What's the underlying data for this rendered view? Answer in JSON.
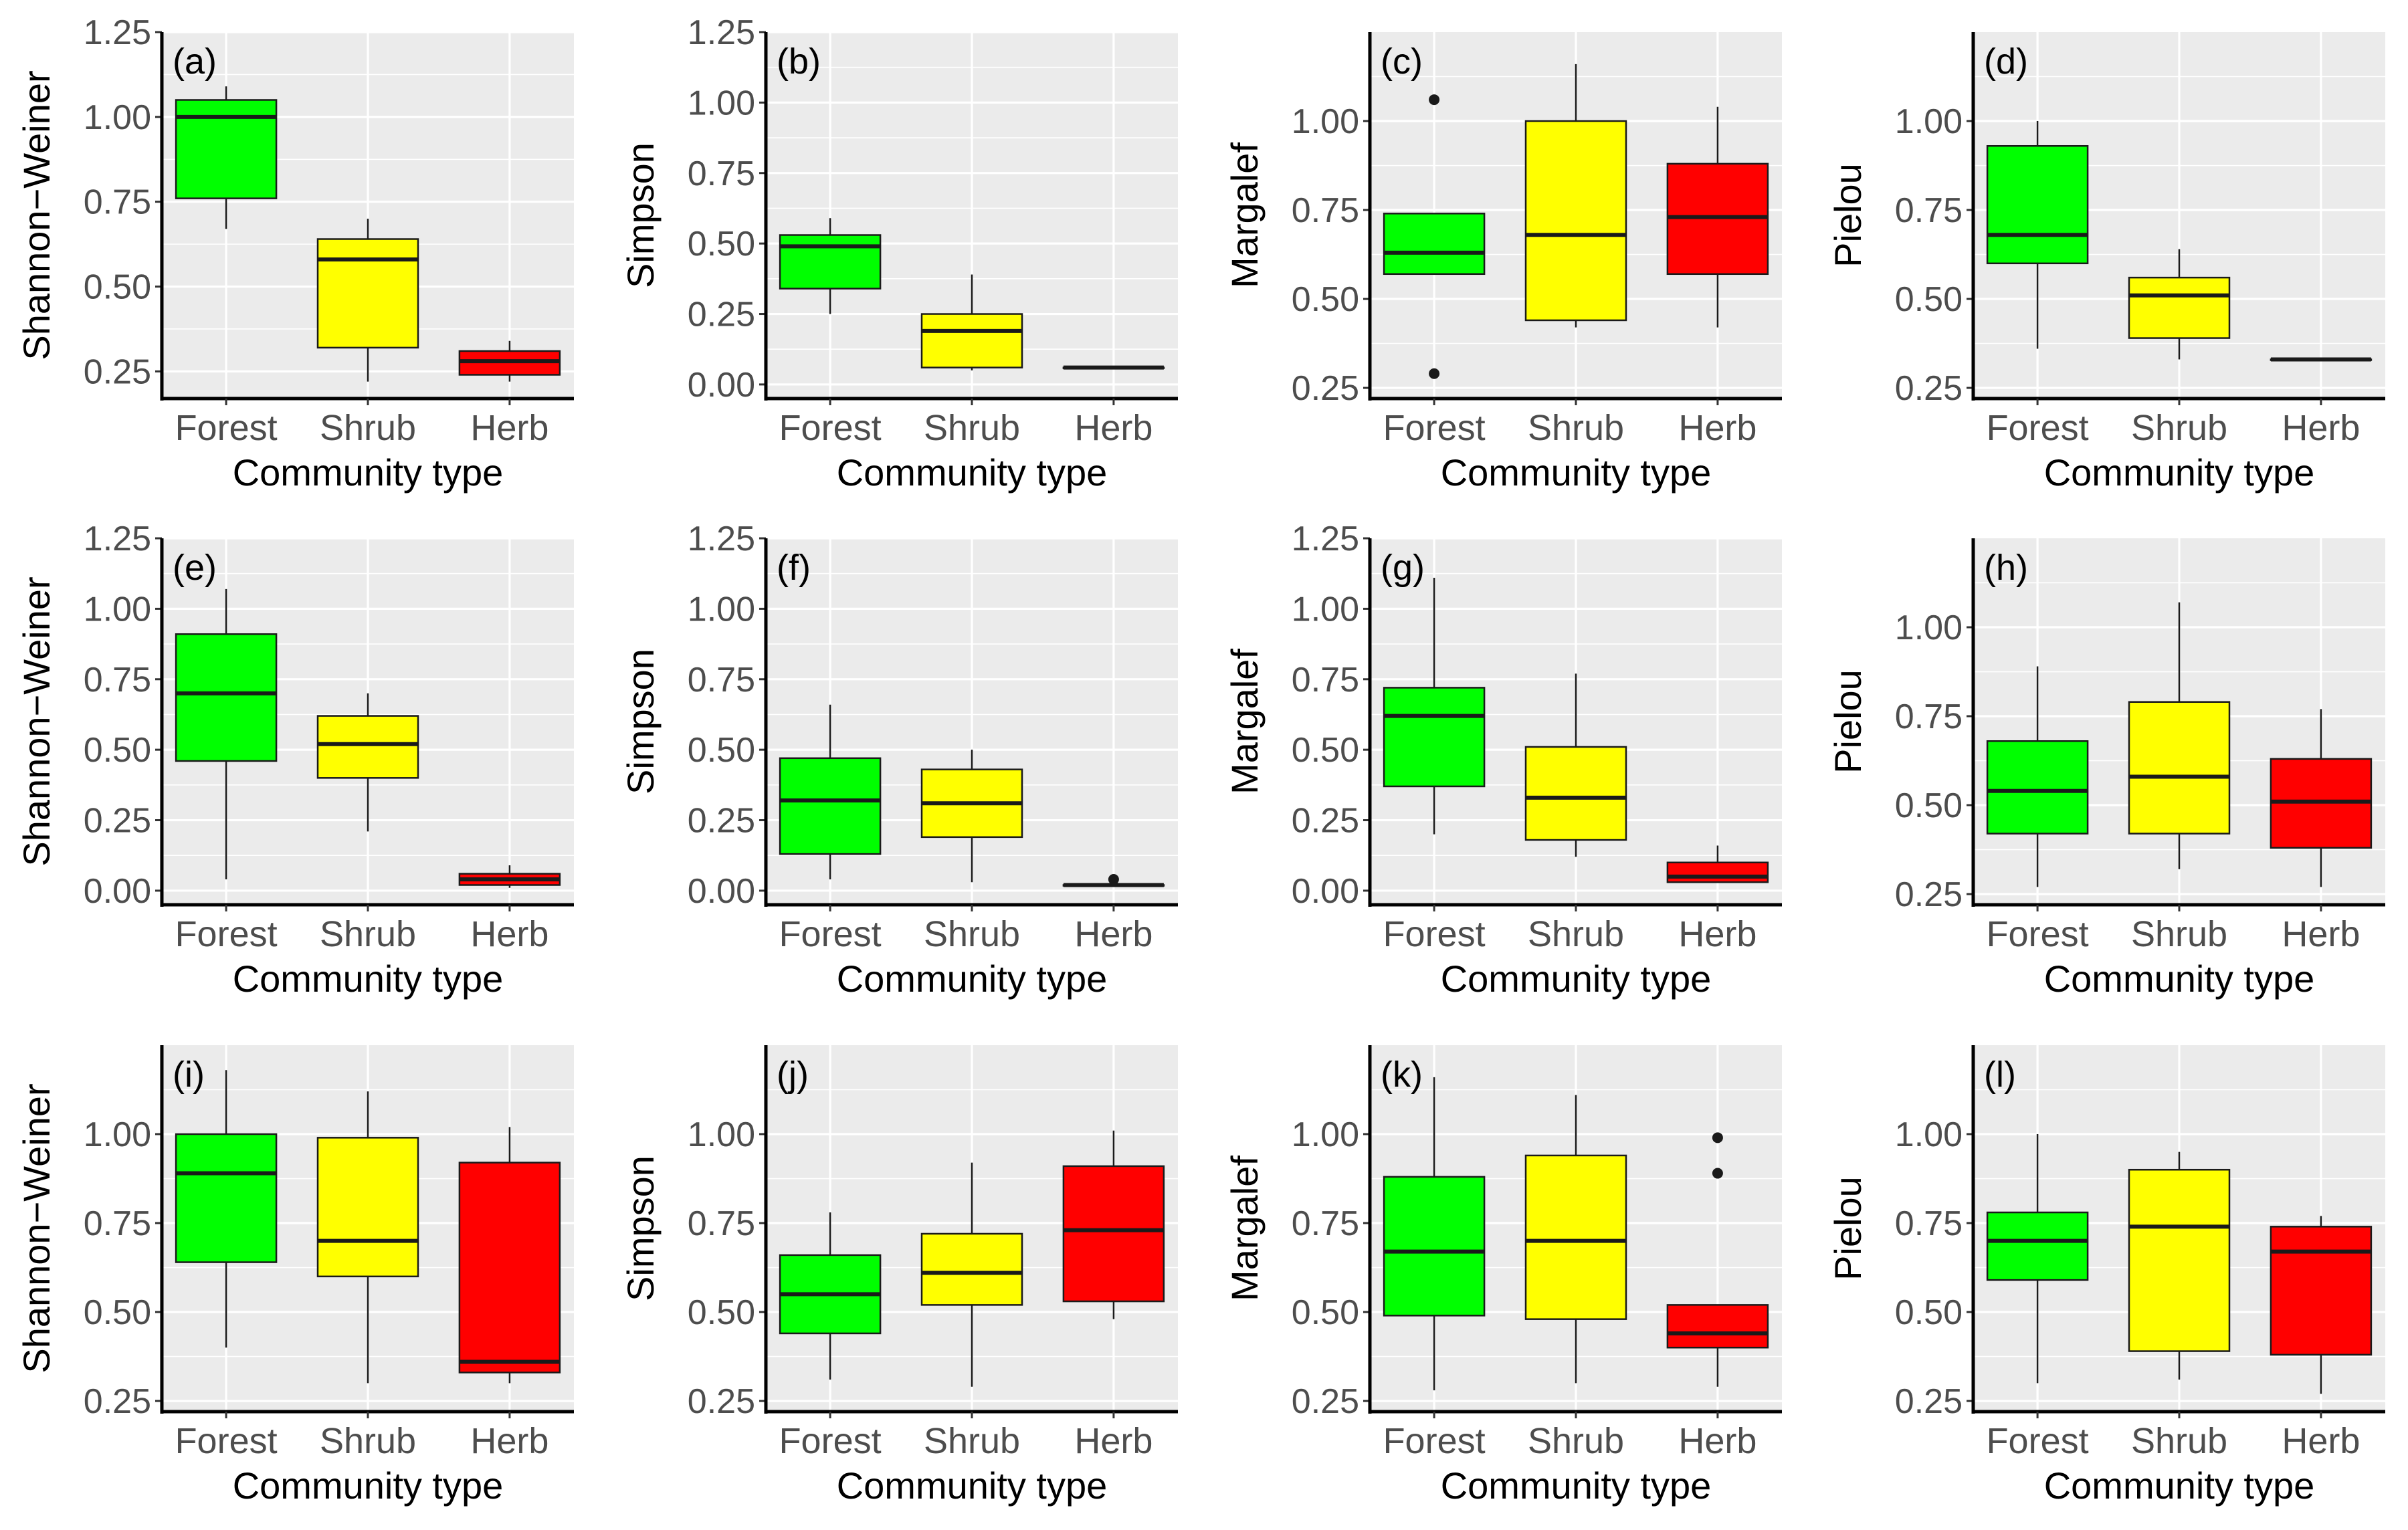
{
  "figure": {
    "colors": {
      "Forest": "#00ff00",
      "Shrub": "#ffff00",
      "Herb": "#ff0000",
      "panel_bg": "#ebebeb",
      "grid": "#ffffff",
      "axis_text": "#4d4d4d"
    }
  },
  "chart_data": [
    {
      "type": "box",
      "panel": "(a)",
      "ylabel": "Shannon−Weiner",
      "xlabel": "Community type",
      "categories": [
        "Forest",
        "Shrub",
        "Herb"
      ],
      "ylim": [
        0.17,
        1.25
      ],
      "yticks": [
        "0.25",
        "0.50",
        "0.75",
        "1.00",
        "1.25"
      ],
      "boxes": [
        {
          "lw": 0.67,
          "q1": 0.76,
          "med": 1.0,
          "q3": 1.05,
          "uw": 1.09,
          "out": []
        },
        {
          "lw": 0.22,
          "q1": 0.32,
          "med": 0.58,
          "q3": 0.64,
          "uw": 0.7,
          "out": []
        },
        {
          "lw": 0.22,
          "q1": 0.24,
          "med": 0.28,
          "q3": 0.31,
          "uw": 0.34,
          "out": []
        }
      ]
    },
    {
      "type": "box",
      "panel": "(b)",
      "ylabel": "Simpson",
      "xlabel": "Community type",
      "categories": [
        "Forest",
        "Shrub",
        "Herb"
      ],
      "ylim": [
        -0.05,
        1.25
      ],
      "yticks": [
        "0.00",
        "0.25",
        "0.50",
        "0.75",
        "1.00",
        "1.25"
      ],
      "boxes": [
        {
          "lw": 0.25,
          "q1": 0.34,
          "med": 0.49,
          "q3": 0.53,
          "uw": 0.59,
          "out": []
        },
        {
          "lw": 0.05,
          "q1": 0.06,
          "med": 0.19,
          "q3": 0.25,
          "uw": 0.39,
          "out": []
        },
        {
          "lw": 0.06,
          "q1": 0.06,
          "med": 0.06,
          "q3": 0.06,
          "uw": 0.06,
          "out": []
        }
      ]
    },
    {
      "type": "box",
      "panel": "(c)",
      "ylabel": "Margalef",
      "xlabel": "Community type",
      "categories": [
        "Forest",
        "Shrub",
        "Herb"
      ],
      "ylim": [
        0.22,
        1.25
      ],
      "yticks": [
        "0.25",
        "0.50",
        "0.75",
        "1.00"
      ],
      "boxes": [
        {
          "lw": 0.57,
          "q1": 0.57,
          "med": 0.63,
          "q3": 0.74,
          "uw": 0.74,
          "out": [
            1.06,
            0.29
          ]
        },
        {
          "lw": 0.42,
          "q1": 0.44,
          "med": 0.68,
          "q3": 1.0,
          "uw": 1.16,
          "out": []
        },
        {
          "lw": 0.42,
          "q1": 0.57,
          "med": 0.73,
          "q3": 0.88,
          "uw": 1.04,
          "out": []
        }
      ]
    },
    {
      "type": "box",
      "panel": "(d)",
      "ylabel": "Pielou",
      "xlabel": "Community type",
      "categories": [
        "Forest",
        "Shrub",
        "Herb"
      ],
      "ylim": [
        0.22,
        1.25
      ],
      "yticks": [
        "0.25",
        "0.50",
        "0.75",
        "1.00"
      ],
      "boxes": [
        {
          "lw": 0.36,
          "q1": 0.6,
          "med": 0.68,
          "q3": 0.93,
          "uw": 1.0,
          "out": []
        },
        {
          "lw": 0.33,
          "q1": 0.39,
          "med": 0.51,
          "q3": 0.56,
          "uw": 0.64,
          "out": []
        },
        {
          "lw": 0.33,
          "q1": 0.33,
          "med": 0.33,
          "q3": 0.33,
          "uw": 0.33,
          "out": []
        }
      ]
    },
    {
      "type": "box",
      "panel": "(e)",
      "ylabel": "Shannon−Weiner",
      "xlabel": "Community type",
      "categories": [
        "Forest",
        "Shrub",
        "Herb"
      ],
      "ylim": [
        -0.05,
        1.25
      ],
      "yticks": [
        "0.00",
        "0.25",
        "0.50",
        "0.75",
        "1.00",
        "1.25"
      ],
      "boxes": [
        {
          "lw": 0.04,
          "q1": 0.46,
          "med": 0.7,
          "q3": 0.91,
          "uw": 1.07,
          "out": []
        },
        {
          "lw": 0.21,
          "q1": 0.4,
          "med": 0.52,
          "q3": 0.62,
          "uw": 0.7,
          "out": []
        },
        {
          "lw": 0.01,
          "q1": 0.02,
          "med": 0.04,
          "q3": 0.06,
          "uw": 0.09,
          "out": []
        }
      ]
    },
    {
      "type": "box",
      "panel": "(f)",
      "ylabel": "Simpson",
      "xlabel": "Community type",
      "categories": [
        "Forest",
        "Shrub",
        "Herb"
      ],
      "ylim": [
        -0.05,
        1.25
      ],
      "yticks": [
        "0.00",
        "0.25",
        "0.50",
        "0.75",
        "1.00",
        "1.25"
      ],
      "boxes": [
        {
          "lw": 0.04,
          "q1": 0.13,
          "med": 0.32,
          "q3": 0.47,
          "uw": 0.66,
          "out": []
        },
        {
          "lw": 0.03,
          "q1": 0.19,
          "med": 0.31,
          "q3": 0.43,
          "uw": 0.5,
          "out": []
        },
        {
          "lw": 0.02,
          "q1": 0.02,
          "med": 0.02,
          "q3": 0.02,
          "uw": 0.02,
          "out": [
            0.04
          ]
        }
      ]
    },
    {
      "type": "box",
      "panel": "(g)",
      "ylabel": "Margalef",
      "xlabel": "Community type",
      "categories": [
        "Forest",
        "Shrub",
        "Herb"
      ],
      "ylim": [
        -0.05,
        1.25
      ],
      "yticks": [
        "0.00",
        "0.25",
        "0.50",
        "0.75",
        "1.00",
        "1.25"
      ],
      "boxes": [
        {
          "lw": 0.2,
          "q1": 0.37,
          "med": 0.62,
          "q3": 0.72,
          "uw": 1.11,
          "out": []
        },
        {
          "lw": 0.12,
          "q1": 0.18,
          "med": 0.33,
          "q3": 0.51,
          "uw": 0.77,
          "out": []
        },
        {
          "lw": 0.03,
          "q1": 0.03,
          "med": 0.05,
          "q3": 0.1,
          "uw": 0.16,
          "out": []
        }
      ]
    },
    {
      "type": "box",
      "panel": "(h)",
      "ylabel": "Pielou",
      "xlabel": "Community type",
      "categories": [
        "Forest",
        "Shrub",
        "Herb"
      ],
      "ylim": [
        0.22,
        1.25
      ],
      "yticks": [
        "0.25",
        "0.50",
        "0.75",
        "1.00"
      ],
      "boxes": [
        {
          "lw": 0.27,
          "q1": 0.42,
          "med": 0.54,
          "q3": 0.68,
          "uw": 0.89,
          "out": []
        },
        {
          "lw": 0.32,
          "q1": 0.42,
          "med": 0.58,
          "q3": 0.79,
          "uw": 1.07,
          "out": []
        },
        {
          "lw": 0.27,
          "q1": 0.38,
          "med": 0.51,
          "q3": 0.63,
          "uw": 0.77,
          "out": []
        }
      ]
    },
    {
      "type": "box",
      "panel": "(i)",
      "ylabel": "Shannon−Weiner",
      "xlabel": "Community type",
      "categories": [
        "Forest",
        "Shrub",
        "Herb"
      ],
      "ylim": [
        0.22,
        1.25
      ],
      "yticks": [
        "0.25",
        "0.50",
        "0.75",
        "1.00"
      ],
      "boxes": [
        {
          "lw": 0.4,
          "q1": 0.64,
          "med": 0.89,
          "q3": 1.0,
          "uw": 1.18,
          "out": []
        },
        {
          "lw": 0.3,
          "q1": 0.6,
          "med": 0.7,
          "q3": 0.99,
          "uw": 1.12,
          "out": []
        },
        {
          "lw": 0.3,
          "q1": 0.33,
          "med": 0.36,
          "q3": 0.92,
          "uw": 1.02,
          "out": []
        }
      ]
    },
    {
      "type": "box",
      "panel": "(j)",
      "ylabel": "Simpson",
      "xlabel": "Community type",
      "categories": [
        "Forest",
        "Shrub",
        "Herb"
      ],
      "ylim": [
        0.22,
        1.25
      ],
      "yticks": [
        "0.25",
        "0.50",
        "0.75",
        "1.00"
      ],
      "boxes": [
        {
          "lw": 0.31,
          "q1": 0.44,
          "med": 0.55,
          "q3": 0.66,
          "uw": 0.78,
          "out": []
        },
        {
          "lw": 0.29,
          "q1": 0.52,
          "med": 0.61,
          "q3": 0.72,
          "uw": 0.92,
          "out": []
        },
        {
          "lw": 0.48,
          "q1": 0.53,
          "med": 0.73,
          "q3": 0.91,
          "uw": 1.01,
          "out": []
        }
      ]
    },
    {
      "type": "box",
      "panel": "(k)",
      "ylabel": "Margalef",
      "xlabel": "Community type",
      "categories": [
        "Forest",
        "Shrub",
        "Herb"
      ],
      "ylim": [
        0.22,
        1.25
      ],
      "yticks": [
        "0.25",
        "0.50",
        "0.75",
        "1.00"
      ],
      "boxes": [
        {
          "lw": 0.28,
          "q1": 0.49,
          "med": 0.67,
          "q3": 0.88,
          "uw": 1.16,
          "out": []
        },
        {
          "lw": 0.3,
          "q1": 0.48,
          "med": 0.7,
          "q3": 0.94,
          "uw": 1.11,
          "out": []
        },
        {
          "lw": 0.29,
          "q1": 0.4,
          "med": 0.44,
          "q3": 0.52,
          "uw": 0.52,
          "out": [
            0.99,
            0.89
          ]
        }
      ]
    },
    {
      "type": "box",
      "panel": "(l)",
      "ylabel": "Pielou",
      "xlabel": "Community type",
      "categories": [
        "Forest",
        "Shrub",
        "Herb"
      ],
      "ylim": [
        0.22,
        1.25
      ],
      "yticks": [
        "0.25",
        "0.50",
        "0.75",
        "1.00"
      ],
      "boxes": [
        {
          "lw": 0.3,
          "q1": 0.59,
          "med": 0.7,
          "q3": 0.78,
          "uw": 1.0,
          "out": []
        },
        {
          "lw": 0.31,
          "q1": 0.39,
          "med": 0.74,
          "q3": 0.9,
          "uw": 0.95,
          "out": []
        },
        {
          "lw": 0.27,
          "q1": 0.38,
          "med": 0.67,
          "q3": 0.74,
          "uw": 0.77,
          "out": []
        }
      ]
    }
  ]
}
